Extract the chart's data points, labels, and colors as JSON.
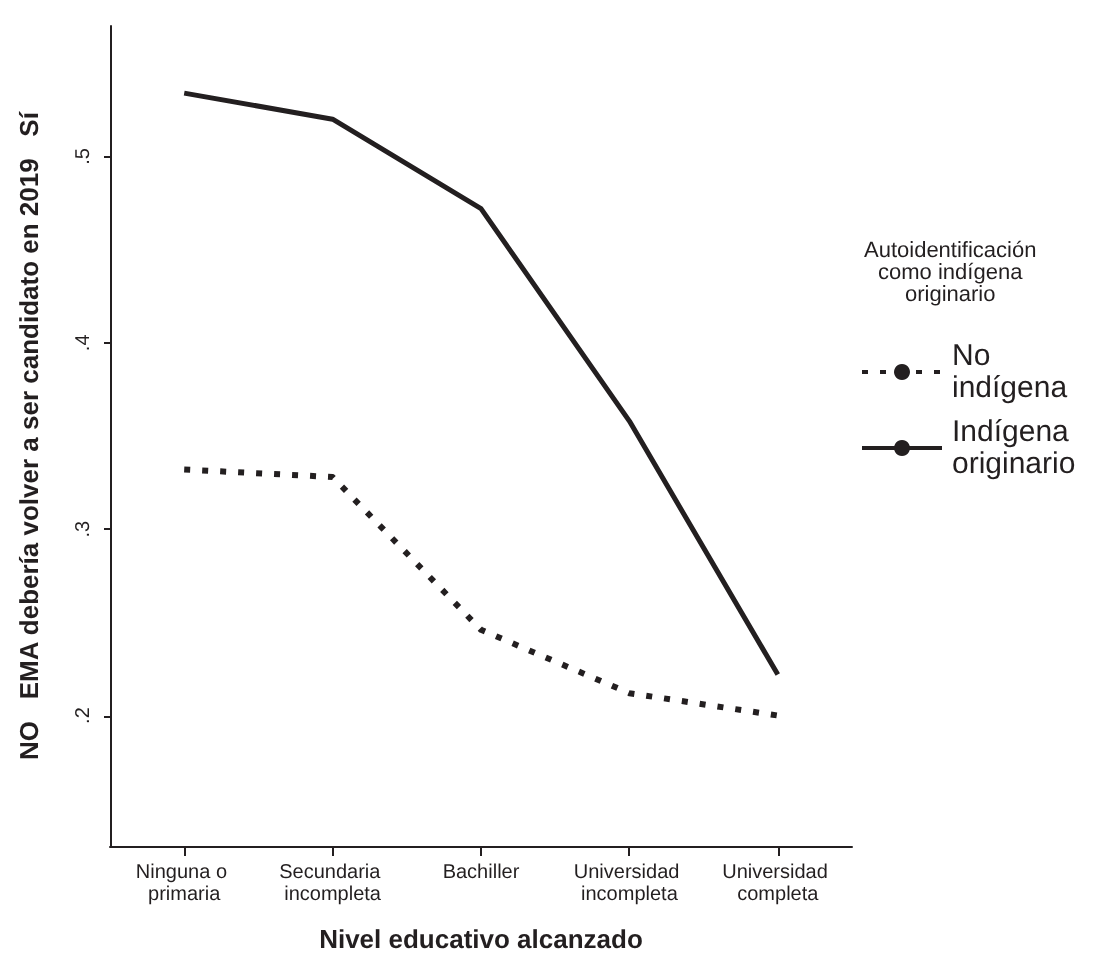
{
  "chart_data": {
    "type": "line",
    "xlabel": "Nivel educativo alcanzado",
    "ylabel": "NO   EMA debería volver a ser candidato en 2019   Sí",
    "legend_title": "Autoidentificación como indígena originario",
    "categories": [
      "Ninguna o primaria",
      "Secundaria incompleta",
      "Bachiller",
      "Universidad incompleta",
      "Universidad completa"
    ],
    "series": [
      {
        "name": "No indígena",
        "color": "#231f20",
        "line_style": "dotted",
        "values": [
          0.332,
          0.328,
          0.246,
          0.212,
          0.2
        ]
      },
      {
        "name": "Indígena originario",
        "color": "#231f20",
        "line_style": "solid",
        "values": [
          0.534,
          0.52,
          0.472,
          0.358,
          0.222
        ]
      }
    ],
    "ylim": [
      0.13,
      0.57
    ],
    "yticks": [
      {
        "value": 0.2,
        "label": ".2"
      },
      {
        "value": 0.3,
        "label": ".3"
      },
      {
        "value": 0.4,
        "label": ".4"
      },
      {
        "value": 0.5,
        "label": ".5"
      }
    ],
    "grid": false,
    "legend": "right",
    "marker": "none"
  }
}
